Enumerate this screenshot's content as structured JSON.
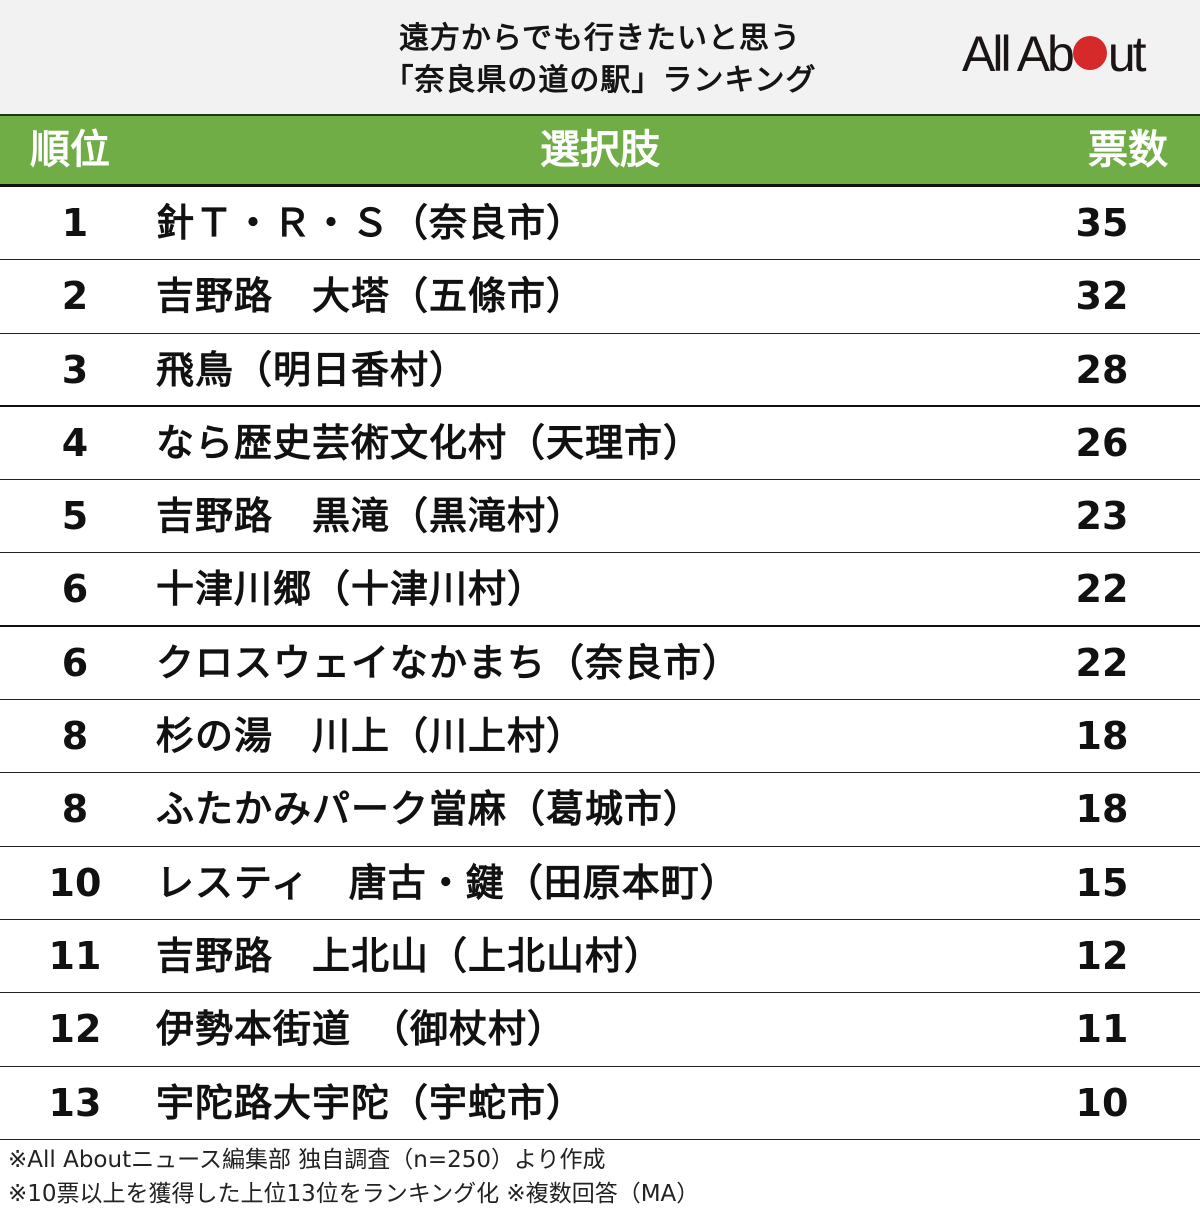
{
  "title": {
    "line1": "遠方からでも行きたいと思う",
    "line2": "「奈良県の道の駅」ランキング"
  },
  "logo": {
    "text_before": "All Ab",
    "text_after": "ut",
    "dot_color": "#d62a2a"
  },
  "colors": {
    "header_bg": "#70ad47",
    "title_bg": "#f2f2f2",
    "header_text": "#ffffff"
  },
  "header": {
    "rank": "順位",
    "choice": "選択肢",
    "votes": "票数"
  },
  "rows": [
    {
      "rank": "1",
      "name": "針Ｔ・Ｒ・Ｓ（奈良市）",
      "votes": "35"
    },
    {
      "rank": "2",
      "name": "吉野路　大塔（五條市）",
      "votes": "32"
    },
    {
      "rank": "3",
      "name": "飛鳥（明日香村）",
      "votes": "28"
    },
    {
      "rank": "4",
      "name": "なら歴史芸術文化村（天理市）",
      "votes": "26"
    },
    {
      "rank": "5",
      "name": "吉野路　黒滝（黒滝村）",
      "votes": "23"
    },
    {
      "rank": "6",
      "name": "十津川郷（十津川村）",
      "votes": "22"
    },
    {
      "rank": "6",
      "name": "クロスウェイなかまち（奈良市）",
      "votes": "22"
    },
    {
      "rank": "8",
      "name": "杉の湯　川上（川上村）",
      "votes": "18"
    },
    {
      "rank": "8",
      "name": "ふたかみパーク當麻（葛城市）",
      "votes": "18"
    },
    {
      "rank": "10",
      "name": "レスティ　唐古・鍵（田原本町）",
      "votes": "15"
    },
    {
      "rank": "11",
      "name": "吉野路　上北山（上北山村）",
      "votes": "12"
    },
    {
      "rank": "12",
      "name": "伊勢本街道　（御杖村）",
      "votes": "11"
    },
    {
      "rank": "13",
      "name": "宇陀路大宇陀（宇蛇市）",
      "votes": "10"
    }
  ],
  "notes": {
    "line1": "※All Aboutニュース編集部 独自調査（n=250）より作成",
    "line2": "※10票以上を獲得した上位13位をランキング化 ※複数回答（MA）"
  },
  "chart_data": {
    "type": "table",
    "title": "遠方からでも行きたいと思う「奈良県の道の駅」ランキング",
    "columns": [
      "順位",
      "選択肢",
      "票数"
    ],
    "categories": [
      "針Ｔ・Ｒ・Ｓ（奈良市）",
      "吉野路　大塔（五條市）",
      "飛鳥（明日香村）",
      "なら歴史芸術文化村（天理市）",
      "吉野路　黒滝（黒滝村）",
      "十津川郷（十津川村）",
      "クロスウェイなかまち（奈良市）",
      "杉の湯　川上（川上村）",
      "ふたかみパーク當麻（葛城市）",
      "レスティ　唐古・鍵（田原本町）",
      "吉野路　上北山（上北山村）",
      "伊勢本街道　（御杖村）",
      "宇陀路大宇陀（宇蛇市）"
    ],
    "ranks": [
      1,
      2,
      3,
      4,
      5,
      6,
      6,
      8,
      8,
      10,
      11,
      12,
      13
    ],
    "values": [
      35,
      32,
      28,
      26,
      23,
      22,
      22,
      18,
      18,
      15,
      12,
      11,
      10
    ],
    "xlabel": "選択肢",
    "ylabel": "票数",
    "notes": [
      "※All Aboutニュース編集部 独自調査（n=250）より作成",
      "※10票以上を獲得した上位13位をランキング化 ※複数回答（MA）"
    ]
  }
}
